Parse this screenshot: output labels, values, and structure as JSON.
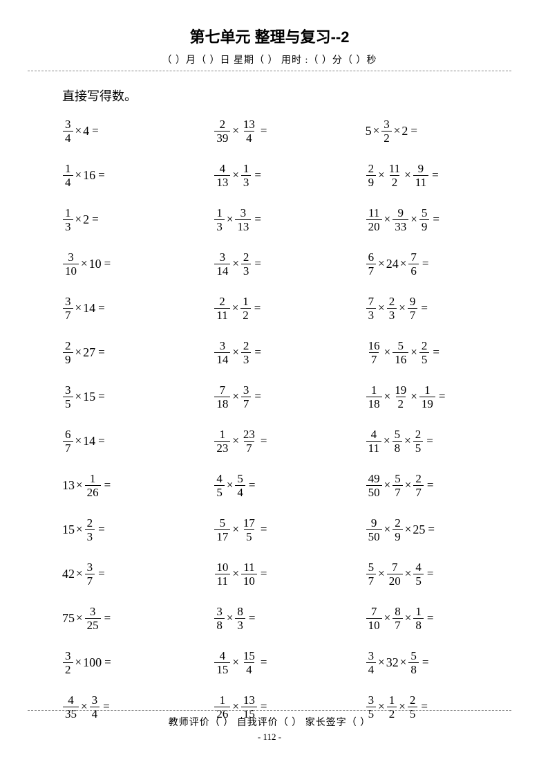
{
  "title": "第七单元  整理与复习--2",
  "meta": "（   ）月（   ）日     星期（   ）     用时 :（   ）分（   ）秒",
  "instruction": "直接写得数。",
  "footer": "教师评价（        ）       自我评价（      ）      家长签字（             ）",
  "page": "- 112 -",
  "mult": "×",
  "eq": "=",
  "problems": {
    "col1": [
      [
        {
          "n": "3",
          "d": "4"
        },
        "4"
      ],
      [
        {
          "n": "1",
          "d": "4"
        },
        "16"
      ],
      [
        {
          "n": "1",
          "d": "3"
        },
        "2"
      ],
      [
        {
          "n": "3",
          "d": "10"
        },
        "10"
      ],
      [
        {
          "n": "3",
          "d": "7"
        },
        "14"
      ],
      [
        {
          "n": "2",
          "d": "9"
        },
        "27"
      ],
      [
        {
          "n": "3",
          "d": "5"
        },
        "15"
      ],
      [
        {
          "n": "6",
          "d": "7"
        },
        "14"
      ],
      [
        "13",
        {
          "n": "1",
          "d": "26"
        }
      ],
      [
        "15",
        {
          "n": "2",
          "d": "3"
        }
      ],
      [
        "42",
        {
          "n": "3",
          "d": "7"
        }
      ],
      [
        "75",
        {
          "n": "3",
          "d": "25"
        }
      ],
      [
        {
          "n": "3",
          "d": "2"
        },
        "100"
      ],
      [
        {
          "n": "4",
          "d": "35"
        },
        {
          "n": "3",
          "d": "4"
        }
      ]
    ],
    "col2": [
      [
        {
          "n": "2",
          "d": "39"
        },
        {
          "n": "13",
          "d": "4"
        }
      ],
      [
        {
          "n": "4",
          "d": "13"
        },
        {
          "n": "1",
          "d": "3"
        }
      ],
      [
        {
          "n": "1",
          "d": "3"
        },
        {
          "n": "3",
          "d": "13"
        }
      ],
      [
        {
          "n": "3",
          "d": "14"
        },
        {
          "n": "2",
          "d": "3"
        }
      ],
      [
        {
          "n": "2",
          "d": "11"
        },
        {
          "n": "1",
          "d": "2"
        }
      ],
      [
        {
          "n": "3",
          "d": "14"
        },
        {
          "n": "2",
          "d": "3"
        }
      ],
      [
        {
          "n": "7",
          "d": "18"
        },
        {
          "n": "3",
          "d": "7"
        }
      ],
      [
        {
          "n": "1",
          "d": "23"
        },
        {
          "n": "23",
          "d": "7"
        }
      ],
      [
        {
          "n": "4",
          "d": "5"
        },
        {
          "n": "5",
          "d": "4"
        }
      ],
      [
        {
          "n": "5",
          "d": "17"
        },
        {
          "n": "17",
          "d": "5"
        }
      ],
      [
        {
          "n": "10",
          "d": "11"
        },
        {
          "n": "11",
          "d": "10"
        }
      ],
      [
        {
          "n": "3",
          "d": "8"
        },
        {
          "n": "8",
          "d": "3"
        }
      ],
      [
        {
          "n": "4",
          "d": "15"
        },
        {
          "n": "15",
          "d": "4"
        }
      ],
      [
        {
          "n": "1",
          "d": "26"
        },
        {
          "n": "13",
          "d": "15"
        }
      ]
    ],
    "col3": [
      [
        "5",
        {
          "n": "3",
          "d": "2"
        },
        "2"
      ],
      [
        {
          "n": "2",
          "d": "9"
        },
        {
          "n": "11",
          "d": "2"
        },
        {
          "n": "9",
          "d": "11"
        }
      ],
      [
        {
          "n": "11",
          "d": "20"
        },
        {
          "n": "9",
          "d": "33"
        },
        {
          "n": "5",
          "d": "9"
        }
      ],
      [
        {
          "n": "6",
          "d": "7"
        },
        "24",
        {
          "n": "7",
          "d": "6"
        }
      ],
      [
        {
          "n": "7",
          "d": "3"
        },
        {
          "n": "2",
          "d": "3"
        },
        {
          "n": "9",
          "d": "7"
        }
      ],
      [
        {
          "n": "16",
          "d": "7"
        },
        {
          "n": "5",
          "d": "16"
        },
        {
          "n": "2",
          "d": "5"
        }
      ],
      [
        {
          "n": "1",
          "d": "18"
        },
        {
          "n": "19",
          "d": "2"
        },
        {
          "n": "1",
          "d": "19"
        }
      ],
      [
        {
          "n": "4",
          "d": "11"
        },
        {
          "n": "5",
          "d": "8"
        },
        {
          "n": "2",
          "d": "5"
        }
      ],
      [
        {
          "n": "49",
          "d": "50"
        },
        {
          "n": "5",
          "d": "7"
        },
        {
          "n": "2",
          "d": "7"
        }
      ],
      [
        {
          "n": "9",
          "d": "50"
        },
        {
          "n": "2",
          "d": "9"
        },
        "25"
      ],
      [
        {
          "n": "5",
          "d": "7"
        },
        {
          "n": "7",
          "d": "20"
        },
        {
          "n": "4",
          "d": "5"
        }
      ],
      [
        {
          "n": "7",
          "d": "10"
        },
        {
          "n": "8",
          "d": "7"
        },
        {
          "n": "1",
          "d": "8"
        }
      ],
      [
        {
          "n": "3",
          "d": "4"
        },
        "32",
        {
          "n": "5",
          "d": "8"
        }
      ],
      [
        {
          "n": "3",
          "d": "5"
        },
        {
          "n": "1",
          "d": "2"
        },
        {
          "n": "2",
          "d": "5"
        }
      ]
    ]
  }
}
